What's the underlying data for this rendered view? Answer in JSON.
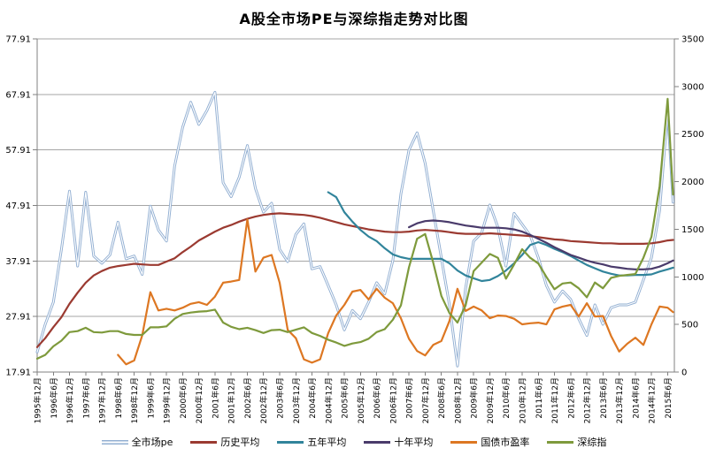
{
  "page": {
    "title": "A股全市场PE与深综指走势对比图"
  },
  "chart_data": {
    "type": "line",
    "title": "A股全市场PE与深综指走势对比图",
    "grid": true,
    "legend_position": "bottom",
    "x_axis": {
      "unit": "months_since_1995-12",
      "tick_interval_months": 6,
      "tick_labels": [
        "1995年12月",
        "1996年6月",
        "1996年12月",
        "1997年6月",
        "1997年12月",
        "1998年6月",
        "1998年12月",
        "1999年6月",
        "1999年12月",
        "2000年6月",
        "2000年12月",
        "2001年6月",
        "2001年12月",
        "2002年6月",
        "2002年12月",
        "2003年6月",
        "2003年12月",
        "2004年6月",
        "2004年12月",
        "2005年6月",
        "2005年12月",
        "2006年6月",
        "2006年12月",
        "2007年6月",
        "2007年12月",
        "2008年6月",
        "2008年12月",
        "2009年6月",
        "2009年12月",
        "2010年6月",
        "2010年12月",
        "2011年6月",
        "2011年12月",
        "2012年6月",
        "2012年12月",
        "2013年6月",
        "2013年12月",
        "2014年6月",
        "2014年12月",
        "2015年6月"
      ]
    },
    "left_axis": {
      "min": 17.91,
      "max": 77.91,
      "ticks": [
        17.91,
        27.91,
        37.91,
        47.91,
        57.91,
        67.91,
        77.91
      ]
    },
    "right_axis": {
      "min": 0,
      "max": 3500,
      "ticks": [
        0,
        500,
        1000,
        1500,
        2000,
        2500,
        3000,
        3500
      ]
    },
    "x_months": [
      0,
      3,
      6,
      9,
      12,
      15,
      18,
      21,
      24,
      27,
      30,
      33,
      36,
      39,
      42,
      45,
      48,
      51,
      54,
      57,
      60,
      63,
      66,
      69,
      72,
      75,
      78,
      81,
      84,
      87,
      90,
      93,
      96,
      99,
      102,
      105,
      108,
      111,
      114,
      117,
      120,
      123,
      126,
      129,
      132,
      135,
      138,
      141,
      144,
      147,
      150,
      153,
      156,
      159,
      162,
      165,
      168,
      171,
      174,
      177,
      180,
      183,
      186,
      189,
      192,
      195,
      198,
      201,
      204,
      207,
      210,
      213,
      216,
      219,
      222,
      225,
      228,
      231,
      234,
      236
    ],
    "series": [
      {
        "key": "market-pe",
        "name": "全市场pe",
        "axis": "left",
        "color": "#92AFD2",
        "style": "double",
        "values": [
          21.5,
          26.5,
          30.5,
          40,
          50.5,
          37,
          50.3,
          38.8,
          37.5,
          39,
          44.9,
          38.3,
          38.8,
          35.5,
          47.8,
          43.5,
          41.5,
          55,
          62,
          66.5,
          62.5,
          65,
          68.3,
          52,
          49.5,
          53,
          58.7,
          51,
          46.7,
          48.3,
          40,
          37.8,
          42.7,
          44.6,
          36.5,
          36.9,
          33.5,
          30,
          25.5,
          29,
          27.5,
          30.5,
          34,
          32,
          38,
          50,
          57.9,
          61,
          55.5,
          47,
          38.5,
          30,
          19,
          33,
          41.5,
          43,
          48,
          44,
          37,
          46.5,
          44.5,
          42.5,
          38.5,
          33.5,
          30.5,
          32.5,
          31,
          27.5,
          24.5,
          30,
          26.5,
          29.5,
          30,
          30,
          30.5,
          34.5,
          38.5,
          47,
          65,
          48.5
        ]
      },
      {
        "key": "hist-avg",
        "name": "历史平均",
        "axis": "left",
        "color": "#9B3A31",
        "style": "solid",
        "values": [
          22.4,
          24,
          26,
          27.8,
          30.2,
          32.2,
          34,
          35.3,
          36.1,
          36.7,
          37,
          37.2,
          37.4,
          37.3,
          37.2,
          37.2,
          37.8,
          38.4,
          39.5,
          40.5,
          41.6,
          42.4,
          43.2,
          43.9,
          44.4,
          45,
          45.5,
          45.9,
          46.2,
          46.4,
          46.5,
          46.4,
          46.3,
          46.2,
          46,
          45.7,
          45.3,
          44.9,
          44.5,
          44.2,
          43.9,
          43.6,
          43.4,
          43.2,
          43.1,
          43.1,
          43.2,
          43.4,
          43.5,
          43.4,
          43.3,
          43.1,
          42.9,
          42.8,
          42.8,
          42.8,
          42.9,
          42.8,
          42.7,
          42.6,
          42.5,
          42.4,
          42.2,
          42,
          41.8,
          41.7,
          41.5,
          41.4,
          41.3,
          41.2,
          41.1,
          41.1,
          41,
          41,
          41,
          41,
          41.1,
          41.3,
          41.6,
          41.7
        ]
      },
      {
        "key": "avg-5y",
        "name": "五年平均",
        "axis": "left",
        "color": "#31849B",
        "style": "solid",
        "values": [
          null,
          null,
          null,
          null,
          null,
          null,
          null,
          null,
          null,
          null,
          null,
          null,
          null,
          null,
          null,
          null,
          null,
          null,
          null,
          null,
          null,
          null,
          null,
          null,
          null,
          null,
          null,
          null,
          null,
          null,
          null,
          null,
          null,
          null,
          null,
          null,
          50.3,
          49.4,
          46.7,
          45,
          43.5,
          42.3,
          41.5,
          40.2,
          39.1,
          38.6,
          38.3,
          38.3,
          38.3,
          38.3,
          38.3,
          37.5,
          36.2,
          35.3,
          34.8,
          34.3,
          34.5,
          35.2,
          36.2,
          37.5,
          39,
          40.8,
          41.3,
          40.8,
          40.1,
          39.5,
          38.8,
          38,
          37.2,
          36.6,
          36,
          35.6,
          35.3,
          35.3,
          35.4,
          35.4,
          35.5,
          36,
          36.4,
          36.7
        ]
      },
      {
        "key": "avg-10y",
        "name": "十年平均",
        "axis": "left",
        "color": "#4A3B6B",
        "style": "solid",
        "values": [
          null,
          null,
          null,
          null,
          null,
          null,
          null,
          null,
          null,
          null,
          null,
          null,
          null,
          null,
          null,
          null,
          null,
          null,
          null,
          null,
          null,
          null,
          null,
          null,
          null,
          null,
          null,
          null,
          null,
          null,
          null,
          null,
          null,
          null,
          null,
          null,
          null,
          null,
          null,
          null,
          null,
          null,
          null,
          null,
          null,
          null,
          44,
          44.7,
          45.1,
          45.2,
          45.1,
          44.9,
          44.6,
          44.3,
          44.1,
          43.9,
          43.9,
          43.9,
          43.8,
          43.6,
          43.2,
          42.6,
          41.9,
          41.2,
          40.4,
          39.7,
          39,
          38.5,
          38,
          37.6,
          37.3,
          36.9,
          36.7,
          36.5,
          36.4,
          36.4,
          36.5,
          36.9,
          37.5,
          38
        ]
      },
      {
        "key": "bond-pe",
        "name": "国债市盈率",
        "axis": "left",
        "color": "#DD7722",
        "style": "solid",
        "values": [
          null,
          null,
          null,
          null,
          null,
          null,
          null,
          null,
          null,
          null,
          21,
          19.3,
          20,
          24.5,
          32.3,
          29,
          29.3,
          29,
          29.5,
          30.2,
          30.5,
          30,
          31.5,
          34,
          34.2,
          34.5,
          45.4,
          36,
          38.5,
          39,
          34,
          25.5,
          24,
          20.2,
          19.6,
          20.2,
          24.9,
          28.1,
          30,
          32.4,
          32.7,
          31,
          32.9,
          31.3,
          30.3,
          27.6,
          23.9,
          21.7,
          20.9,
          22.8,
          23.5,
          27.1,
          32.9,
          28.9,
          29.7,
          29,
          27.6,
          28.1,
          28,
          27.5,
          26.5,
          26.7,
          26.8,
          26.5,
          29.2,
          29.7,
          30,
          27.9,
          30.3,
          27.9,
          28,
          24.4,
          21.6,
          23,
          24.1,
          22.8,
          26.5,
          29.7,
          29.5,
          28.7
        ]
      },
      {
        "key": "szcomp",
        "name": "深综指",
        "axis": "right",
        "color": "#7E9A3C",
        "style": "solid",
        "values": [
          140,
          180,
          270,
          330,
          420,
          430,
          465,
          420,
          415,
          430,
          430,
          400,
          390,
          390,
          470,
          470,
          480,
          560,
          610,
          625,
          635,
          640,
          655,
          520,
          475,
          450,
          465,
          440,
          410,
          440,
          445,
          420,
          445,
          470,
          410,
          380,
          340,
          310,
          275,
          300,
          315,
          350,
          420,
          450,
          550,
          700,
          1100,
          1400,
          1450,
          1150,
          800,
          620,
          520,
          700,
          1060,
          1150,
          1240,
          1200,
          980,
          1130,
          1290,
          1200,
          1140,
          1000,
          870,
          930,
          940,
          880,
          785,
          940,
          880,
          990,
          1010,
          1020,
          1030,
          1200,
          1420,
          1950,
          2870,
          1865
        ]
      }
    ]
  }
}
